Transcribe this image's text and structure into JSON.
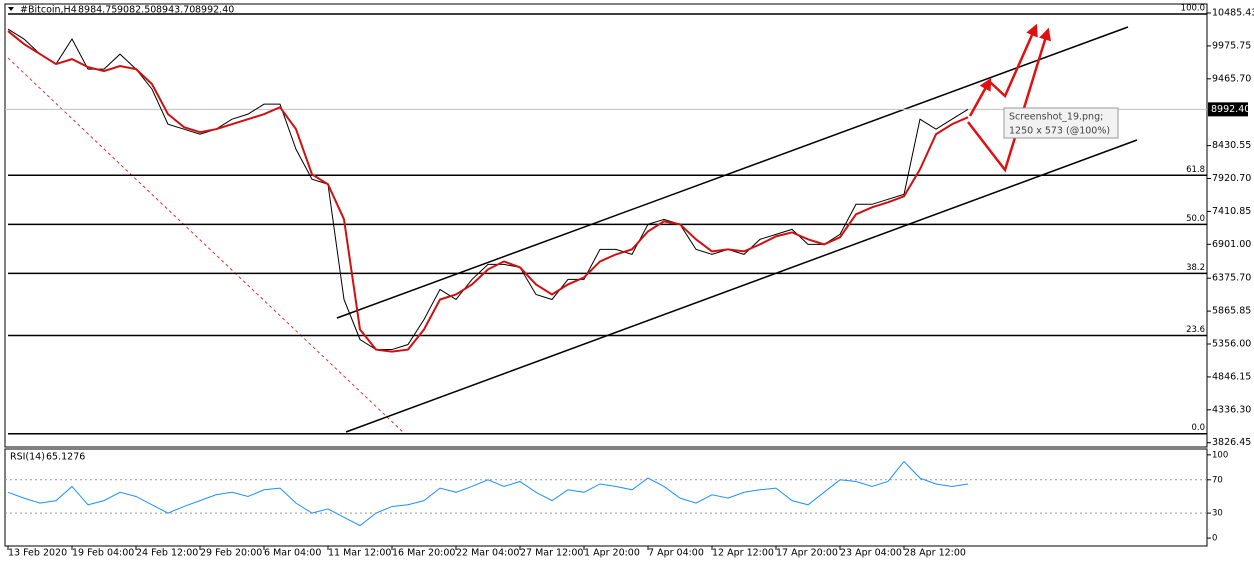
{
  "chart_data": {
    "type": "line",
    "title": "#Bitcoin,H4",
    "ohlc": [
      8984.75,
      {
        "value": 9082.5,
        "label": "9082.50"
      },
      {
        "value": 8943.7,
        "label": "8943.70"
      },
      {
        "value": 8992.4,
        "label": "8992.40"
      }
    ],
    "categories": [
      "13 Feb 2020",
      null,
      null,
      null,
      "19 Feb 04:00",
      null,
      null,
      null,
      "24 Feb 12:00",
      null,
      null,
      null,
      "29 Feb 20:00",
      null,
      null,
      null,
      "6 Mar 04:00",
      null,
      null,
      null,
      "11 Mar 12:00",
      null,
      null,
      null,
      "16 Mar 20:00",
      null,
      null,
      null,
      "22 Mar 04:00",
      null,
      null,
      null,
      "27 Mar 12:00",
      null,
      null,
      null,
      "1 Apr 20:00",
      null,
      null,
      null,
      "7 Apr 04:00",
      null,
      null,
      null,
      "12 Apr 12:00",
      null,
      null,
      null,
      "17 Apr 20:00",
      null,
      null,
      null,
      "23 Apr 04:00",
      null,
      null,
      null,
      "28 Apr 12:00",
      null,
      null,
      null,
      null
    ],
    "series": [
      {
        "color": "#000000",
        "values": [
          10237,
          10082,
          9849,
          9694,
          10082,
          9616,
          9616,
          9849,
          9616,
          9306,
          8762,
          8685,
          8607,
          8685,
          8840,
          8918,
          9073,
          9073,
          8374,
          7909,
          7831,
          6046,
          5426,
          5270,
          5270,
          5348,
          5736,
          6202,
          6046,
          6357,
          6590,
          6590,
          6543,
          6124,
          6046,
          6357,
          6357,
          6823,
          6823,
          6745,
          7211,
          7288,
          7211,
          6823,
          6745,
          6823,
          6745,
          6978,
          7055,
          7133,
          6900,
          6900,
          7055,
          7521,
          7521,
          7598,
          7676,
          8840,
          8685,
          8840,
          8992.4
        ]
      },
      {
        "color": "#d01010",
        "values": [
          10206,
          10004,
          9849,
          9694,
          9771,
          9647,
          9585,
          9663,
          9616,
          9383,
          8918,
          8716,
          8638,
          8685,
          8762,
          8840,
          8918,
          9026,
          8685,
          7986,
          7831,
          7288,
          5581,
          5270,
          5239,
          5270,
          5581,
          6046,
          6124,
          6279,
          6512,
          6636,
          6543,
          6279,
          6124,
          6279,
          6388,
          6636,
          6745,
          6823,
          7102,
          7257,
          7211,
          6978,
          6791,
          6823,
          6791,
          6900,
          7024,
          7086,
          6978,
          6900,
          7009,
          7366,
          7474,
          7552,
          7645,
          8064,
          8607,
          8762,
          8871
        ]
      }
    ],
    "ylim": [
      3760,
      10625
    ],
    "yticks": [
      10485.43,
      {
        "value": 9975.75,
        "label": "9975.75"
      },
      {
        "value": 9465.7,
        "label": "9465.70"
      },
      {
        "value": 8430.55,
        "label": "8430.55"
      },
      {
        "value": 7920.7,
        "label": "7920.70"
      },
      7410.85,
      {
        "value": 6901,
        "label": "6901.00"
      },
      {
        "value": 6375.7,
        "label": "6375.70"
      },
      5865.85,
      {
        "value": 5356,
        "label": "5356.00"
      },
      4846.15,
      {
        "value": 4336.3,
        "label": "4336.30"
      },
      3826.45
    ],
    "fib_levels": [
      {
        "ratio": {
          "value": 100,
          "label": "100.0"
        },
        "price": 10470
      },
      {
        "ratio": 61.8,
        "price": 7971
      },
      {
        "ratio": {
          "value": 50,
          "label": "50.0"
        },
        "price": 7210
      },
      {
        "ratio": 38.2,
        "price": 6450
      },
      {
        "ratio": 23.6,
        "price": 5487
      },
      {
        "ratio": {
          "value": 0,
          "label": "0.0"
        },
        "price": 3966
      }
    ],
    "rsi": {
      "title": "RSI(14)",
      "value": 65.1276,
      "color": "#1e90ff",
      "values": [
        55,
        48,
        42,
        45,
        62,
        40,
        45,
        55,
        50,
        40,
        30,
        38,
        45,
        52,
        55,
        50,
        58,
        60,
        42,
        30,
        35,
        25,
        15,
        30,
        38,
        40,
        45,
        60,
        55,
        62,
        70,
        62,
        68,
        55,
        45,
        58,
        55,
        65,
        62,
        58,
        72,
        62,
        48,
        42,
        52,
        48,
        55,
        58,
        60,
        45,
        40,
        55,
        70,
        68,
        62,
        68,
        92,
        72,
        65,
        62,
        65
      ],
      "ylim": [
        -9.5,
        107
      ],
      "yticks": [
        100,
        70,
        30,
        0
      ]
    },
    "annotation": [
      "Screenshot_19.png;",
      "1250 x 573 (@100%)"
    ]
  }
}
